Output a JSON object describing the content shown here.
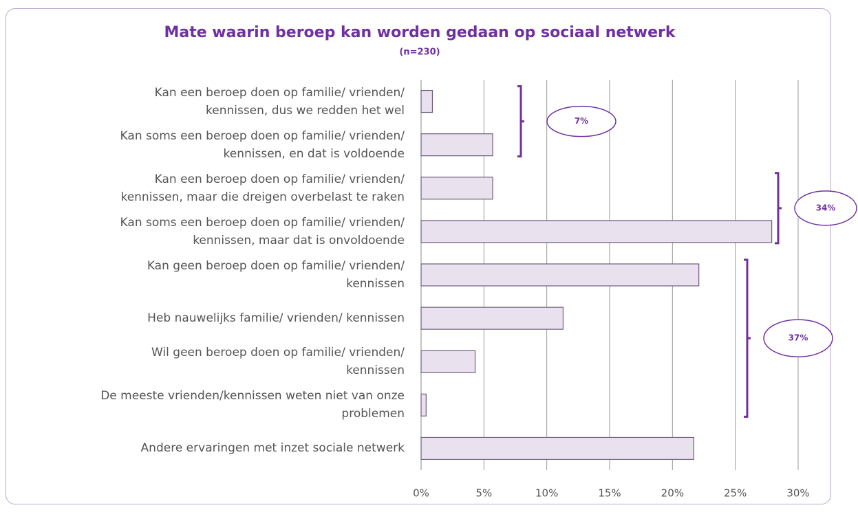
{
  "chart_data": {
    "type": "bar",
    "orientation": "horizontal",
    "title": "Mate waarin beroep kan worden gedaan op sociaal netwerk",
    "subtitle": "(n=230)",
    "categories": [
      "Kan een beroep doen op familie/ vrienden/\nkennissen, dus we redden het wel",
      "Kan soms een beroep doen op familie/ vrienden/\nkennissen, en dat is voldoende",
      "Kan een beroep doen op familie/ vrienden/\nkennissen, maar die dreigen overbelast te raken",
      "Kan soms een beroep doen op familie/ vrienden/\nkennissen, maar dat is onvoldoende",
      "Kan geen beroep doen op familie/ vrienden/\nkennissen",
      "Heb nauwelijks familie/ vrienden/ kennissen",
      "Wil geen beroep doen op familie/ vrienden/\nkennissen",
      "De meeste vrienden/kennissen weten niet van onze\nproblemen",
      "Andere ervaringen met inzet sociale netwerk"
    ],
    "values": [
      0.9,
      5.7,
      5.7,
      27.9,
      22.1,
      11.3,
      4.3,
      0.4,
      21.7
    ],
    "color": "#e9e1ee",
    "xlim": [
      0,
      30
    ],
    "xticks": [
      {
        "value": 0,
        "label": "0%"
      },
      {
        "value": 5,
        "label": "5%"
      },
      {
        "value": 10,
        "label": "10%"
      },
      {
        "value": 15,
        "label": "15%"
      },
      {
        "value": 20,
        "label": "20%"
      },
      {
        "value": 25,
        "label": "25%"
      },
      {
        "value": 30,
        "label": "30%"
      }
    ],
    "grid": true,
    "annotations": [
      {
        "text": "7%"
      },
      {
        "text": "34%"
      },
      {
        "text": "37%"
      }
    ]
  }
}
